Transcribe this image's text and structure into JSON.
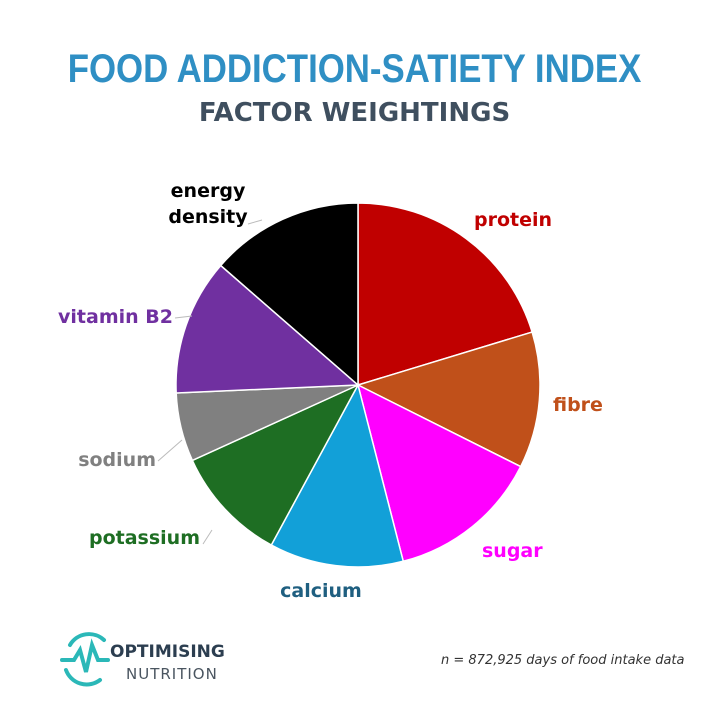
{
  "chart_data": {
    "type": "pie",
    "title": "FOOD ADDICTION-SATIETY INDEX",
    "subtitle": "FACTOR WEIGHTINGS",
    "slices": [
      {
        "label": "protein",
        "value": 20.3,
        "color": "#c00000"
      },
      {
        "label": "fibre",
        "value": 12.1,
        "color": "#c0501a"
      },
      {
        "label": "sugar",
        "value": 13.6,
        "color": "#ff00ff"
      },
      {
        "label": "calcium",
        "value": 11.9,
        "color": "#12a0d8"
      },
      {
        "label": "potassium",
        "value": 10.3,
        "color": "#1e6e23"
      },
      {
        "label": "sodium",
        "value": 6.1,
        "color": "#808080"
      },
      {
        "label": "vitamin B2",
        "value": 12.1,
        "color": "#7030a0"
      },
      {
        "label": "energy density",
        "value": 13.6,
        "color": "#000000"
      }
    ],
    "label_colors": {
      "protein": "#c00000",
      "fibre": "#c0501a",
      "sugar": "#ff00ff",
      "calcium": "#1f5f80",
      "potassium": "#1e6e23",
      "sodium": "#808080",
      "vitamin B2": "#7030a0",
      "energy density": "#000000"
    }
  },
  "footer": {
    "logo_line1": "OPTIMISING",
    "logo_line2": "NUTRITION",
    "logo_color": "#2bb8b8",
    "note": "n = 872,925 days of food intake data"
  }
}
